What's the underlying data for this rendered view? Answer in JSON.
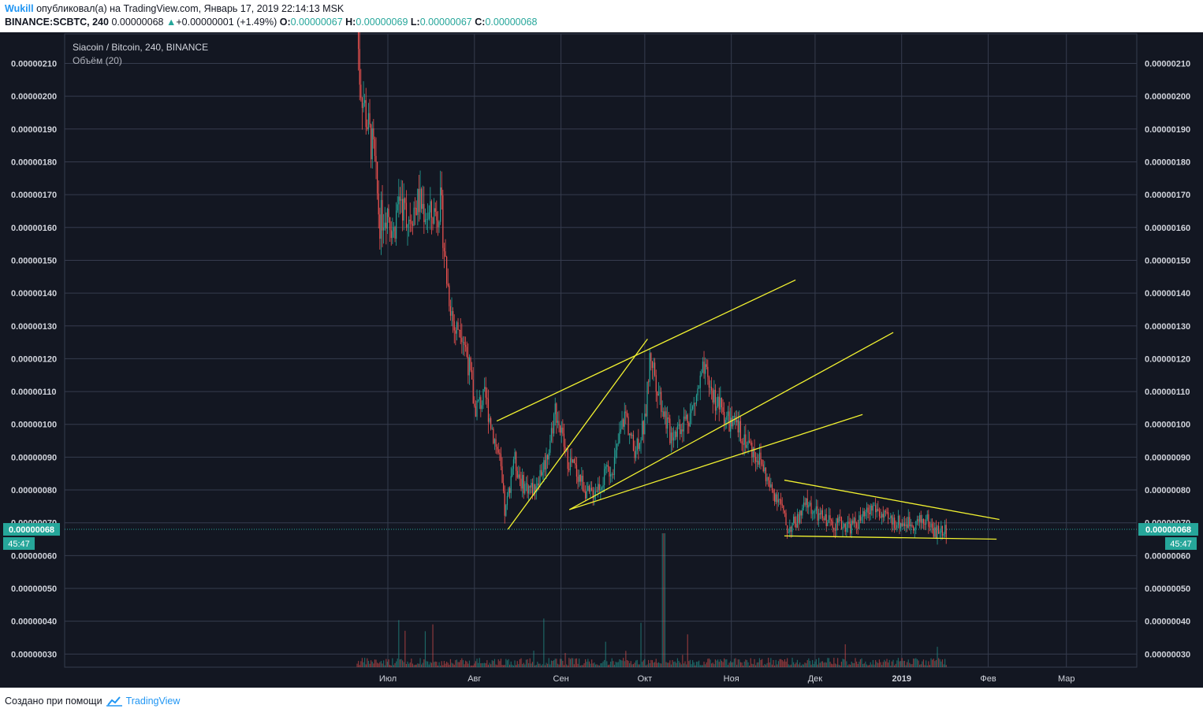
{
  "header": {
    "author": "Wukill",
    "published_text": "опубликовал(а) на TradingView.com, Январь 17, 2019 22:14:13 MSK",
    "symbol": "BINANCE:SCBTC, 240",
    "last": "0.00000068",
    "arrow": "▲",
    "change": "+0.00000001 (+1.49%)",
    "o_label": "O:",
    "o_value": "0.00000067",
    "h_label": "H:",
    "h_value": "0.00000069",
    "l_label": "L:",
    "l_value": "0.00000067",
    "c_label": "C:",
    "c_value": "0.00000068"
  },
  "legend": {
    "title": "Siacoin / Bitcoin, 240, BINANCE",
    "volume": "Объём (20)"
  },
  "footer": {
    "created_with": "Создано при помощи",
    "brand": "TradingView",
    "logo_icon": "tradingview-cloud-icon"
  },
  "chart_data": {
    "type": "candlestick",
    "price_scale": {
      "ticks": [
        "0.00000210",
        "0.00000200",
        "0.00000190",
        "0.00000180",
        "0.00000170",
        "0.00000160",
        "0.00000150",
        "0.00000140",
        "0.00000130",
        "0.00000120",
        "0.00000110",
        "0.00000100",
        "0.00000090",
        "0.00000080",
        "0.00000070",
        "0.00000060",
        "0.00000050",
        "0.00000040",
        "0.00000030"
      ],
      "ymin": 2.6e-07,
      "ymax": 2.19e-06,
      "current_price_label": "0.00000068",
      "current_price": 6.8e-07,
      "countdown_label": "45:47"
    },
    "time_scale": {
      "labels": [
        "Июл",
        "Авг",
        "Сен",
        "Окт",
        "Ноя",
        "Дек",
        "2019",
        "Фев",
        "Мар"
      ]
    },
    "path_points": [
      [
        "Jun 20",
        2.22e-06
      ],
      [
        "Jun 21",
        2.05e-06
      ],
      [
        "Jun 24",
        1.9e-06
      ],
      [
        "Jun 26",
        1.82e-06
      ],
      [
        "Jun 28",
        1.62e-06
      ],
      [
        "Jul 01",
        1.66e-06
      ],
      [
        "Jul 03",
        1.58e-06
      ],
      [
        "Jul 05",
        1.7e-06
      ],
      [
        "Jul 08",
        1.63e-06
      ],
      [
        "Jul 12",
        1.68e-06
      ],
      [
        "Jul 16",
        1.63e-06
      ],
      [
        "Jul 20",
        1.67e-06
      ],
      [
        "Jul 22",
        1.45e-06
      ],
      [
        "Jul 25",
        1.28e-06
      ],
      [
        "Jul 27",
        1.31e-06
      ],
      [
        "Jul 30",
        1.18e-06
      ],
      [
        "Aug 01",
        1.05e-06
      ],
      [
        "Aug 05",
        1.08e-06
      ],
      [
        "Aug 07",
        1e-06
      ],
      [
        "Aug 10",
        8.9e-07
      ],
      [
        "Aug 12",
        7.2e-07
      ],
      [
        "Aug 15",
        9e-07
      ],
      [
        "Aug 18",
        8.2e-07
      ],
      [
        "Aug 22",
        8e-07
      ],
      [
        "Aug 27",
        9e-07
      ],
      [
        "Aug 30",
        1.05e-06
      ],
      [
        "Sep 03",
        9e-07
      ],
      [
        "Sep 07",
        8.5e-07
      ],
      [
        "Sep 11",
        7.8e-07
      ],
      [
        "Sep 15",
        8.2e-07
      ],
      [
        "Sep 20",
        8.8e-07
      ],
      [
        "Sep 24",
        1.04e-06
      ],
      [
        "Sep 27",
        9.2e-07
      ],
      [
        "Oct 01",
        1e-06
      ],
      [
        "Oct 03",
        1.22e-06
      ],
      [
        "Oct 06",
        1.1e-06
      ],
      [
        "Oct 10",
        9.7e-07
      ],
      [
        "Oct 14",
        1e-06
      ],
      [
        "Oct 18",
        1.04e-06
      ],
      [
        "Oct 22",
        1.16e-06
      ],
      [
        "Oct 26",
        1.08e-06
      ],
      [
        "Oct 31",
        1.01e-06
      ],
      [
        "Nov 04",
        9.8e-07
      ],
      [
        "Nov 08",
        9.3e-07
      ],
      [
        "Nov 12",
        8.8e-07
      ],
      [
        "Nov 15",
        8e-07
      ],
      [
        "Nov 18",
        7.8e-07
      ],
      [
        "Nov 21",
        6.8e-07
      ],
      [
        "Nov 25",
        7.1e-07
      ],
      [
        "Nov 28",
        7.6e-07
      ],
      [
        "Dec 02",
        7.2e-07
      ],
      [
        "Dec 08",
        7e-07
      ],
      [
        "Dec 14",
        6.9e-07
      ],
      [
        "Dec 18",
        7.1e-07
      ],
      [
        "Dec 22",
        7.5e-07
      ],
      [
        "Dec 26",
        7.1e-07
      ],
      [
        "Jan 01",
        7e-07
      ],
      [
        "Jan 06",
        7e-07
      ],
      [
        "Jan 10",
        7.1e-07
      ],
      [
        "Jan 13",
        6.7e-07
      ],
      [
        "Jan 17",
        6.8e-07
      ]
    ],
    "drawn_lines": [
      {
        "from": [
          "Aug 09",
          1.01e-06
        ],
        "to": [
          "Nov 24",
          1.44e-06
        ],
        "color": "#f2f230"
      },
      {
        "from": [
          "Aug 13",
          6.8e-07
        ],
        "to": [
          "Oct 02",
          1.26e-06
        ],
        "color": "#f2f230"
      },
      {
        "from": [
          "Sep 04",
          7.4e-07
        ],
        "to": [
          "Dec 29",
          1.28e-06
        ],
        "color": "#f2f230"
      },
      {
        "from": [
          "Sep 04",
          7.4e-07
        ],
        "to": [
          "Dec 18",
          1.03e-06
        ],
        "color": "#f2f230"
      },
      {
        "from": [
          "Nov 20",
          8.3e-07
        ],
        "to": [
          "Feb 05",
          7.1e-07
        ],
        "color": "#f2f230"
      },
      {
        "from": [
          "Nov 20",
          6.6e-07
        ],
        "to": [
          "Feb 04",
          6.5e-07
        ],
        "color": "#f2f230"
      }
    ],
    "volume_series": "histogram",
    "grid": true,
    "colors": {
      "background": "#131722",
      "grid": "#363c4e",
      "up": "#26a69a",
      "down": "#ef5350",
      "text": "#d1d4dc",
      "price_badge": "#26a69a",
      "trendline": "#f2f230"
    }
  }
}
